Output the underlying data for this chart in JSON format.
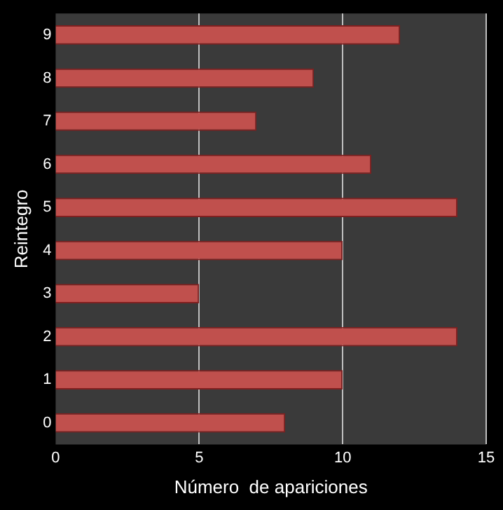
{
  "chart_data": {
    "type": "bar",
    "orientation": "horizontal",
    "xlabel": "Número  de apariciones",
    "ylabel": "Reintegro",
    "categories": [
      "9",
      "8",
      "7",
      "6",
      "5",
      "4",
      "3",
      "2",
      "1",
      "0"
    ],
    "values": [
      12,
      9,
      7,
      11,
      14,
      10,
      5,
      14,
      10,
      8
    ],
    "color": "#c0504d",
    "xlim": [
      0,
      15
    ],
    "xticks": [
      0,
      5,
      10,
      15
    ],
    "grid": "x",
    "legend": false
  }
}
